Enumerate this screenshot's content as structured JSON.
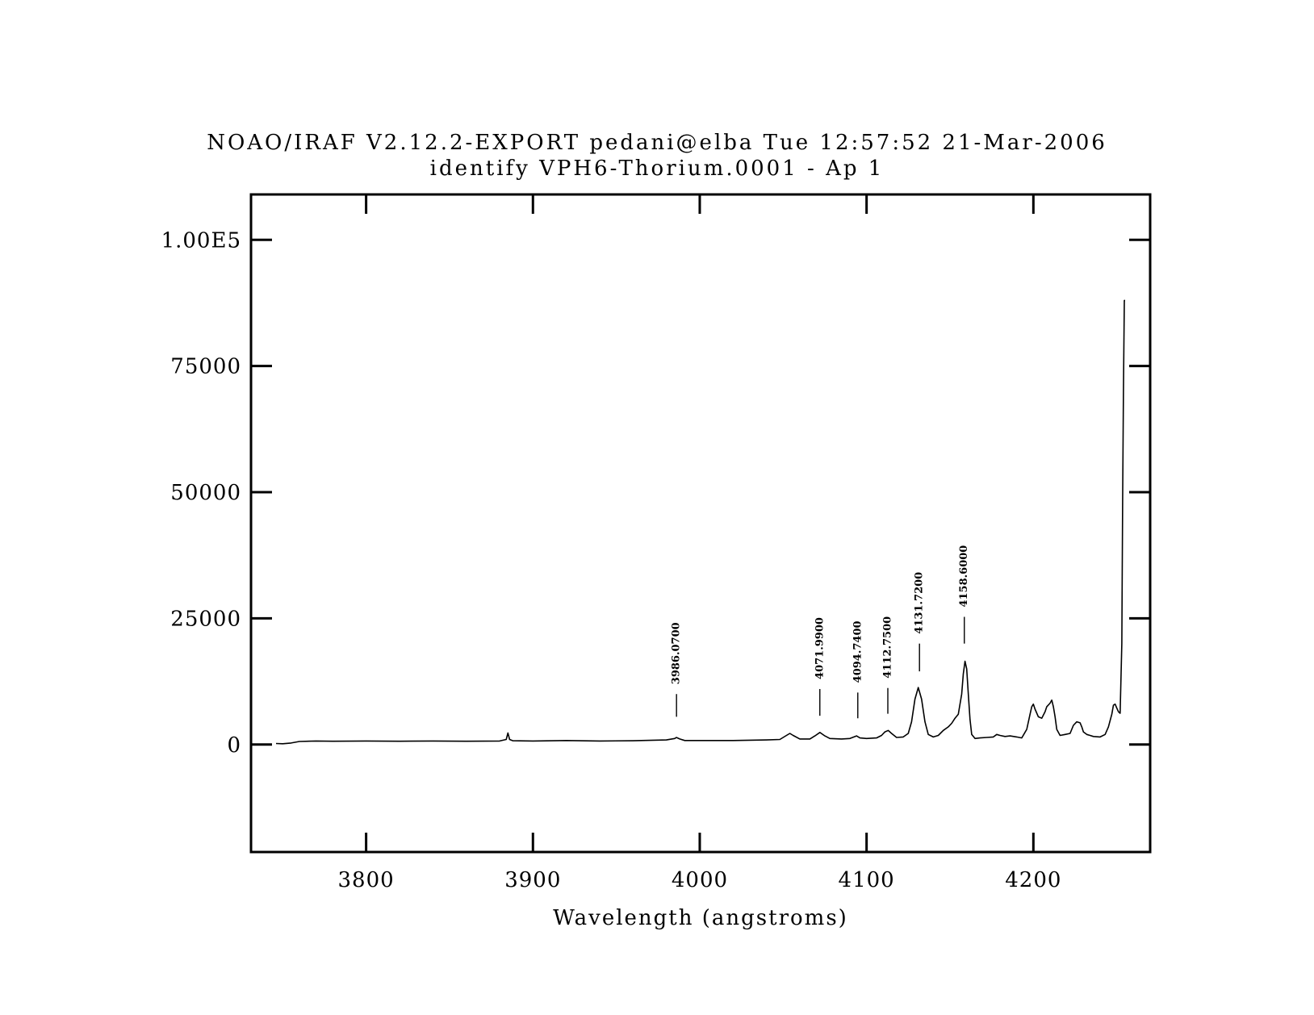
{
  "header": {
    "line1": "NOAO/IRAF V2.12.2-EXPORT pedani@elba Tue 12:57:52 21-Mar-2006",
    "line2": "identify VPH6-Thorium.0001 - Ap 1"
  },
  "chart_data": {
    "type": "line",
    "title": "identify VPH6-Thorium.0001 - Ap 1",
    "xlabel": "Wavelength (angstroms)",
    "ylabel": "",
    "xlim": [
      3731,
      4270
    ],
    "ylim": [
      -21300,
      109000
    ],
    "xticks": [
      3800,
      3900,
      4000,
      4100,
      4200
    ],
    "xtick_labels": [
      "3800",
      "3900",
      "4000",
      "4100",
      "4200"
    ],
    "yticks": [
      0,
      25000,
      50000,
      75000,
      100000
    ],
    "ytick_labels": [
      "0",
      "25000",
      "50000",
      "75000",
      "1.00E5"
    ],
    "grid": false,
    "series": [
      {
        "x": [
          3746,
          3750,
          3755,
          3760,
          3770,
          3780,
          3800,
          3820,
          3840,
          3860,
          3880,
          3884,
          3885,
          3886,
          3888,
          3900,
          3920,
          3940,
          3960,
          3980,
          3985,
          3986,
          3988,
          3991,
          4000,
          4020,
          4040,
          4048,
          4052,
          4054,
          4056,
          4060,
          4066,
          4069,
          4072,
          4075,
          4078,
          4085,
          4090,
          4094,
          4096,
          4100,
          4106,
          4109,
          4111,
          4113,
          4115,
          4118,
          4122,
          4125,
          4127,
          4129,
          4131,
          4133,
          4135,
          4137,
          4140,
          4143,
          4146,
          4149,
          4151,
          4153,
          4155,
          4157,
          4158,
          4159,
          4160,
          4161,
          4162,
          4163,
          4165,
          4168,
          4172,
          4176,
          4178,
          4180,
          4183,
          4186,
          4190,
          4193,
          4196,
          4198,
          4199,
          4200,
          4201,
          4203,
          4205,
          4207,
          4208,
          4210,
          4211,
          4212,
          4213,
          4214,
          4216,
          4219,
          4222,
          4224,
          4226,
          4228,
          4229,
          4230,
          4232,
          4234,
          4236,
          4240,
          4243,
          4245,
          4247,
          4248,
          4249,
          4250,
          4251,
          4252,
          4253,
          4253.5,
          4254,
          4254.5,
          4255
        ],
        "y": [
          200,
          150,
          300,
          600,
          700,
          650,
          700,
          650,
          700,
          650,
          700,
          1000,
          2300,
          1000,
          750,
          700,
          800,
          700,
          750,
          900,
          1200,
          1400,
          1100,
          800,
          800,
          800,
          900,
          1000,
          1800,
          2200,
          1800,
          1100,
          1100,
          1700,
          2400,
          1700,
          1200,
          1100,
          1200,
          1700,
          1300,
          1200,
          1300,
          1800,
          2500,
          2800,
          2200,
          1400,
          1500,
          2200,
          4500,
          9000,
          11300,
          9000,
          4500,
          2000,
          1500,
          1800,
          2800,
          3500,
          4200,
          5200,
          6000,
          10000,
          14000,
          16500,
          15000,
          10000,
          5000,
          2000,
          1200,
          1300,
          1400,
          1500,
          2000,
          1800,
          1600,
          1700,
          1500,
          1300,
          3000,
          6000,
          7500,
          8000,
          7000,
          5500,
          5200,
          6500,
          7500,
          8200,
          8800,
          7500,
          5500,
          3000,
          1800,
          2000,
          2200,
          3800,
          4500,
          4300,
          3500,
          2500,
          2000,
          1800,
          1600,
          1500,
          2000,
          3500,
          6000,
          7800,
          8000,
          7200,
          6500,
          6200,
          20000,
          48000,
          70000,
          88000,
          88000
        ]
      }
    ],
    "line_identifications": [
      {
        "x": 3986.07,
        "label": "3986.0700",
        "tick_y": [
          5500,
          10000
        ]
      },
      {
        "x": 4071.99,
        "label": "4071.9900",
        "tick_y": [
          5700,
          11000
        ]
      },
      {
        "x": 4094.74,
        "label": "4094.7400",
        "tick_y": [
          5200,
          10300
        ]
      },
      {
        "x": 4112.75,
        "label": "4112.7500",
        "tick_y": [
          6100,
          11200
        ]
      },
      {
        "x": 4131.72,
        "label": "4131.7200",
        "tick_y": [
          14500,
          20000
        ]
      },
      {
        "x": 4158.6,
        "label": "4158.6000",
        "tick_y": [
          20000,
          25300
        ]
      }
    ]
  }
}
